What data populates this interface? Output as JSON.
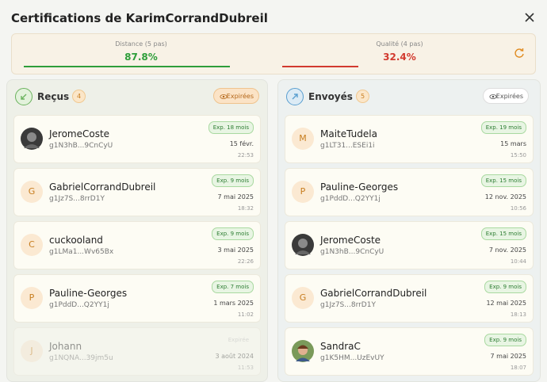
{
  "header": {
    "title": "Certifications de KarimCorrandDubreil"
  },
  "stats": [
    {
      "label": "Distance (5 pas)",
      "value": 87.8,
      "display": "87.8%",
      "color": "#2e9e3a"
    },
    {
      "label": "Qualité (4 pas)",
      "value": 32.4,
      "display": "32.4%",
      "color": "#d23a2f"
    }
  ],
  "received": {
    "title": "Reçus",
    "count": "4",
    "toggle": "Expirées",
    "items": [
      {
        "name": "JeromeCoste",
        "key": "g1N3hB...9CnCyU",
        "badge": "Exp. 18 mois",
        "date": "15 févr.",
        "time": "22:53"
      },
      {
        "name": "GabrielCorrandDubreil",
        "key": "g1Jz7S...8rrD1Y",
        "badge": "Exp. 9 mois",
        "date": "7 mai 2025",
        "time": "18:32",
        "initial": "G"
      },
      {
        "name": "cuckooland",
        "key": "g1LMa1...Wv65Bx",
        "badge": "Exp. 9 mois",
        "date": "3 mai 2025",
        "time": "22:26",
        "initial": "C"
      },
      {
        "name": "Pauline-Georges",
        "key": "g1PddD...Q2YY1j",
        "badge": "Exp. 7 mois",
        "date": "1 mars 2025",
        "time": "11:02",
        "initial": "P"
      },
      {
        "name": "Johann",
        "key": "g1NQNA...39jm5u",
        "badge": "Expirée",
        "date": "3 août 2024",
        "time": "11:53",
        "initial": "J",
        "expired": true
      }
    ]
  },
  "sent": {
    "title": "Envoyés",
    "count": "5",
    "toggle": "Expirées",
    "items": [
      {
        "name": "MaiteTudela",
        "key": "g1LT31...ESEi1i",
        "badge": "Exp. 19 mois",
        "date": "15 mars",
        "time": "15:50",
        "initial": "M"
      },
      {
        "name": "Pauline-Georges",
        "key": "g1PddD...Q2YY1j",
        "badge": "Exp. 15 mois",
        "date": "12 nov. 2025",
        "time": "10:56",
        "initial": "P"
      },
      {
        "name": "JeromeCoste",
        "key": "g1N3hB...9CnCyU",
        "badge": "Exp. 15 mois",
        "date": "7 nov. 2025",
        "time": "10:44"
      },
      {
        "name": "GabrielCorrandDubreil",
        "key": "g1Jz7S...8rrD1Y",
        "badge": "Exp. 9 mois",
        "date": "12 mai 2025",
        "time": "18:13",
        "initial": "G"
      },
      {
        "name": "SandraC",
        "key": "g1K5HM...UzEvUY",
        "badge": "Exp. 9 mois",
        "date": "7 mai 2025",
        "time": "18:07"
      }
    ]
  }
}
